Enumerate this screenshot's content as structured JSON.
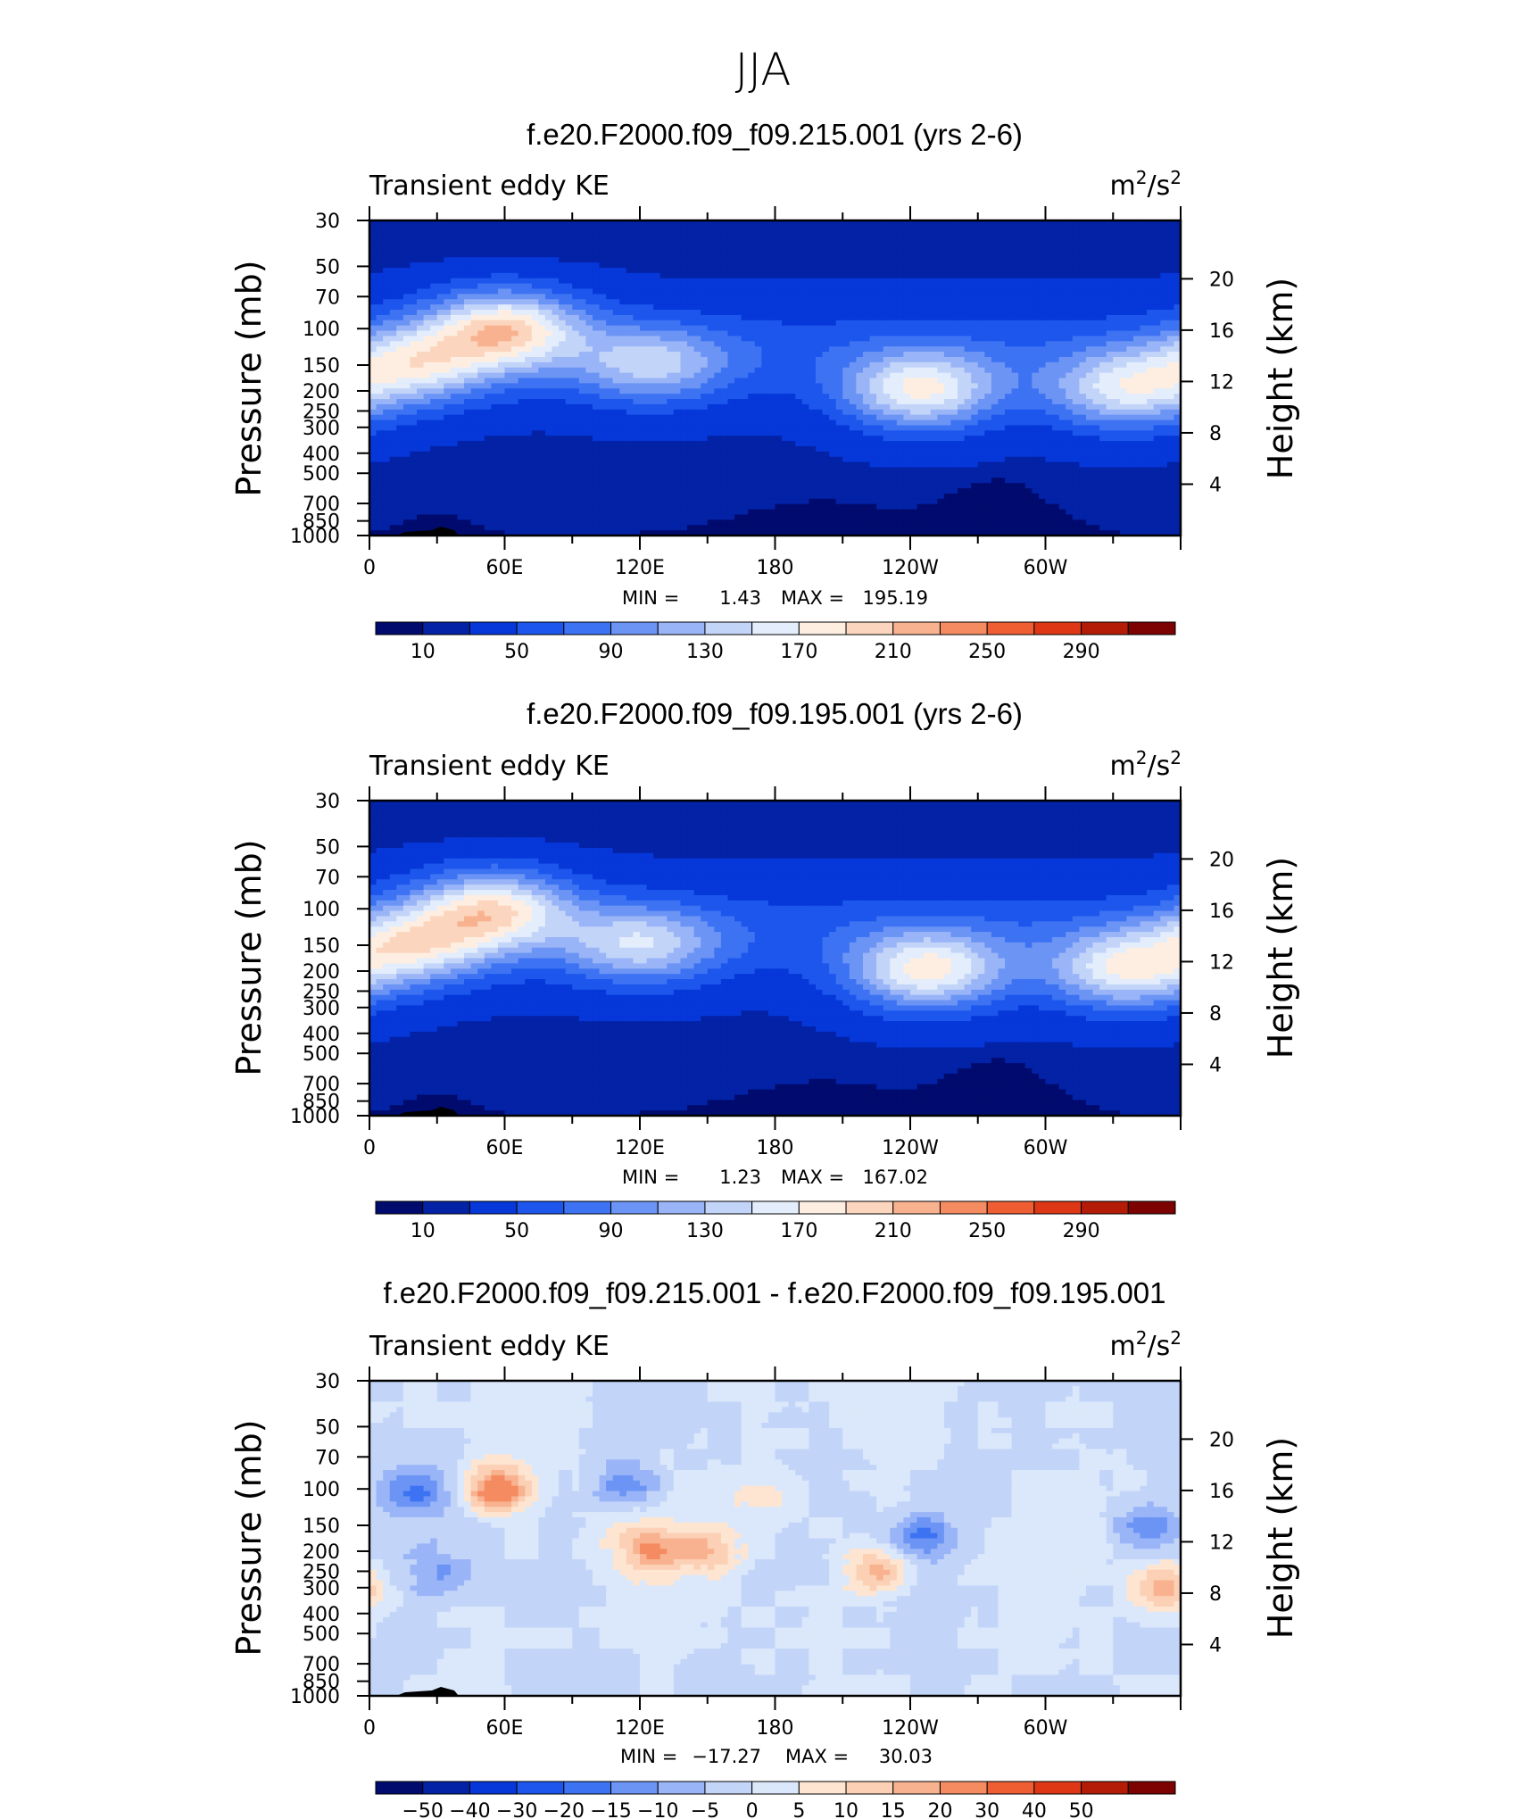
{
  "figure_title": "JJA",
  "colors": {
    "abs_palette": [
      "#010b6e",
      "#0322a6",
      "#0637d9",
      "#1c56ec",
      "#3d73f3",
      "#6b94f5",
      "#9ab5f7",
      "#c3d4f9",
      "#e3edfc",
      "#fdeee1",
      "#fbd5bd",
      "#f8b290",
      "#f48b61",
      "#ef5e33",
      "#de3715",
      "#b41c07",
      "#7d0202"
    ],
    "diff_palette": [
      "#010b6e",
      "#0322a6",
      "#0637d9",
      "#1c56ec",
      "#3d73f3",
      "#6b94f5",
      "#9ab5f7",
      "#c3d4f9",
      "#dbe8fb",
      "#fde5d1",
      "#fbd0b5",
      "#f8b290",
      "#f48b61",
      "#ef5e33",
      "#de3715",
      "#b41c07",
      "#7d0202"
    ]
  },
  "chart_data": [
    {
      "type": "heatmap",
      "title": "f.e20.F2000.f09_f09.215.001 (yrs 2-6)",
      "left_label": "Transient eddy KE",
      "units_base": "m",
      "units_mid": "/s",
      "units_sup": "2",
      "ylabel": "Pressure (mb)",
      "y2label": "Height (km)",
      "x_ticks": [
        "0",
        "60E",
        "120E",
        "180",
        "120W",
        "60W"
      ],
      "y_ticks": [
        "30",
        "50",
        "70",
        "100",
        "150",
        "200",
        "250",
        "300",
        "400",
        "500",
        "700",
        "850",
        "1000"
      ],
      "y2_ticks": [
        "20",
        "16",
        "12",
        "8",
        "4"
      ],
      "min_label": "MIN =",
      "min_value": "1.43",
      "max_label": "MAX =",
      "max_value": "195.19",
      "colorbar_labels": [
        "10",
        "50",
        "90",
        "130",
        "170",
        "210",
        "250",
        "290"
      ],
      "features": [
        {
          "lon": 60,
          "p": 100,
          "amp": 150
        },
        {
          "lon": 20,
          "p": 150,
          "amp": 105
        },
        {
          "lon": 125,
          "p": 150,
          "amp": 85
        },
        {
          "lon": 245,
          "p": 200,
          "amp": 135
        },
        {
          "lon": 335,
          "p": 200,
          "amp": 115
        }
      ]
    },
    {
      "type": "heatmap",
      "title": "f.e20.F2000.f09_f09.195.001 (yrs 2-6)",
      "left_label": "Transient eddy KE",
      "units_base": "m",
      "units_mid": "/s",
      "units_sup": "2",
      "ylabel": "Pressure (mb)",
      "y2label": "Height (km)",
      "x_ticks": [
        "0",
        "60E",
        "120E",
        "180",
        "120W",
        "60W"
      ],
      "y_ticks": [
        "30",
        "50",
        "70",
        "100",
        "150",
        "200",
        "250",
        "300",
        "400",
        "500",
        "700",
        "850",
        "1000"
      ],
      "y2_ticks": [
        "20",
        "16",
        "12",
        "8",
        "4"
      ],
      "min_label": "MIN =",
      "min_value": "1.23",
      "max_label": "MAX =",
      "max_value": "167.02",
      "colorbar_labels": [
        "10",
        "50",
        "90",
        "130",
        "170",
        "210",
        "250",
        "290"
      ],
      "features": [
        {
          "lon": 55,
          "p": 100,
          "amp": 135
        },
        {
          "lon": 20,
          "p": 150,
          "amp": 110
        },
        {
          "lon": 120,
          "p": 150,
          "amp": 95
        },
        {
          "lon": 248,
          "p": 200,
          "amp": 140
        },
        {
          "lon": 335,
          "p": 200,
          "amp": 125
        }
      ]
    },
    {
      "type": "heatmap",
      "title": "f.e20.F2000.f09_f09.215.001 - f.e20.F2000.f09_f09.195.001",
      "left_label": "Transient eddy KE",
      "units_base": "m",
      "units_mid": "/s",
      "units_sup": "2",
      "ylabel": "Pressure (mb)",
      "y2label": "Height (km)",
      "x_ticks": [
        "0",
        "60E",
        "120E",
        "180",
        "120W",
        "60W"
      ],
      "y_ticks": [
        "30",
        "50",
        "70",
        "100",
        "150",
        "200",
        "250",
        "300",
        "400",
        "500",
        "700",
        "850",
        "1000"
      ],
      "y2_ticks": [
        "20",
        "16",
        "12",
        "8",
        "4"
      ],
      "min_label": "MIN =",
      "min_value": "−17.27",
      "max_label": "MAX =",
      "max_value": "30.03",
      "colorbar_labels": [
        "−50",
        "−40",
        "−30",
        "−20",
        "−15",
        "−10",
        "−5",
        "0",
        "5",
        "10",
        "15",
        "20",
        "30",
        "40",
        "50"
      ],
      "features": [
        {
          "lon": 57,
          "p": 100,
          "amp": 28
        },
        {
          "lon": 20,
          "p": 100,
          "amp": -16
        },
        {
          "lon": 113,
          "p": 100,
          "amp": -12
        },
        {
          "lon": 125,
          "p": 200,
          "amp": 16
        },
        {
          "lon": 150,
          "p": 200,
          "amp": 14
        },
        {
          "lon": 225,
          "p": 250,
          "amp": 18
        },
        {
          "lon": 245,
          "p": 170,
          "amp": -15
        },
        {
          "lon": 345,
          "p": 150,
          "amp": -12
        },
        {
          "lon": 352,
          "p": 300,
          "amp": 16
        },
        {
          "lon": 112,
          "p": 160,
          "amp": 8
        },
        {
          "lon": 175,
          "p": 110,
          "amp": 7
        },
        {
          "lon": 30,
          "p": 250,
          "amp": -8
        }
      ]
    }
  ]
}
